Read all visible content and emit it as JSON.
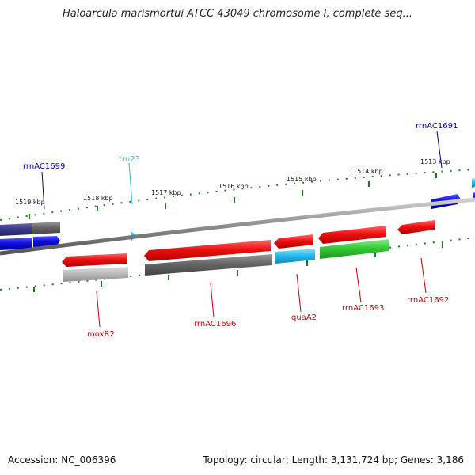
{
  "title": "Haloarcula marismortui ATCC 43049 chromosome I, complete seq...",
  "footer": {
    "accession": "Accession: NC_006396",
    "topology": "Topology: circular; Length: 3,131,724 bp; Genes: 3,186"
  },
  "ruler": [
    "1519 kbp",
    "1518 kbp",
    "1517 kbp",
    "1516 kbp",
    "1515 kbp",
    "1514 kbp",
    "1513 kbp"
  ],
  "labels": [
    {
      "id": "rrnAC1699",
      "text": "rrnAC1699",
      "color": "#0000aa"
    },
    {
      "id": "trn23",
      "text": "trn23",
      "color": "#33bbdd"
    },
    {
      "id": "rrnAC1691",
      "text": "rrnAC1691",
      "color": "#0000aa"
    },
    {
      "id": "moxR2",
      "text": "moxR2",
      "color": "#cc0000"
    },
    {
      "id": "rrnAC1696",
      "text": "rrnAC1696",
      "color": "#cc0000"
    },
    {
      "id": "guaA2",
      "text": "guaA2",
      "color": "#cc0000"
    },
    {
      "id": "rrnAC1693",
      "text": "rrnAC1693",
      "color": "#cc0000"
    },
    {
      "id": "rrnAC1692",
      "text": "rrnAC1692",
      "color": "#cc0000"
    }
  ],
  "colors": {
    "backbone": "#8c8c8c",
    "tick": "#1e7a1e",
    "cds_red": "#ee1111",
    "cds_blue": "#1111dd",
    "cds_cyan": "#22bbee",
    "cds_green": "#33cc33",
    "cds_gray": "#666666",
    "cds_lightgray": "#bbbbbb",
    "cds_darkblue": "#3a3a8a"
  }
}
